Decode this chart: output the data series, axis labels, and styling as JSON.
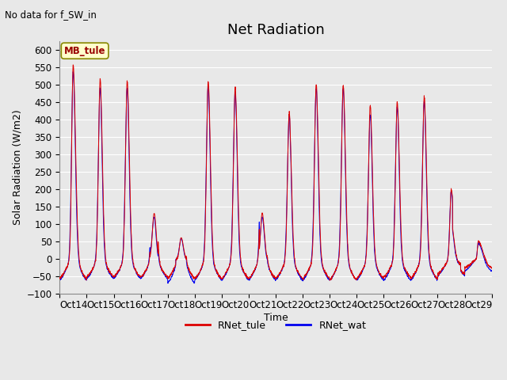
{
  "title": "Net Radiation",
  "top_left_text": "No data for f_SW_in",
  "ylabel": "Solar Radiation (W/m2)",
  "xlabel": "Time",
  "ylim": [
    -100,
    625
  ],
  "yticks": [
    -100,
    -50,
    0,
    50,
    100,
    150,
    200,
    250,
    300,
    350,
    400,
    450,
    500,
    550,
    600
  ],
  "x_tick_labels": [
    "Oct 14",
    "Oct 15",
    "Oct 16",
    "Oct 17",
    "Oct 18",
    "Oct 19",
    "Oct 20",
    "Oct 21",
    "Oct 22",
    "Oct 23",
    "Oct 24",
    "Oct 25",
    "Oct 26",
    "Oct 27",
    "Oct 28",
    "Oct 29"
  ],
  "legend_labels": [
    "RNet_tule",
    "RNet_wat"
  ],
  "line_color_tule": "#dd0000",
  "line_color_wat": "#0000ee",
  "annotation_box_text": "MB_tule",
  "annotation_box_color": "#ffffcc",
  "annotation_box_edgecolor": "#888800",
  "background_color": "#e8e8e8",
  "plot_bg_color": "#e8e8e8",
  "grid_color": "#ffffff",
  "title_fontsize": 13,
  "label_fontsize": 9,
  "tick_fontsize": 8.5
}
